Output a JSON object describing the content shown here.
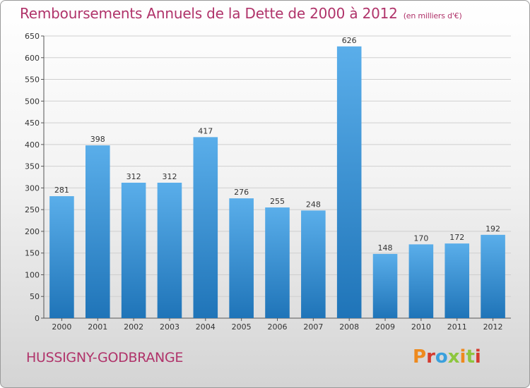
{
  "page": {
    "title": "Remboursements Annuels de la Dette de 2000 à 2012",
    "unit": "(en milliers d'€)",
    "commune": "HUSSIGNY-GODBRANGE",
    "brand": "Proxiti",
    "brand_colors": [
      "#ee8a1e",
      "#d43b2f",
      "#3aa0dd",
      "#8dc63f",
      "#ee8a1e",
      "#8dc63f",
      "#d43b2f"
    ]
  },
  "chart_data": {
    "type": "bar",
    "title": "Remboursements Annuels de la Dette de 2000 à 2012",
    "subtitle": "(en milliers d'€)",
    "xlabel": "",
    "ylabel": "",
    "categories": [
      "2000",
      "2001",
      "2002",
      "2003",
      "2004",
      "2005",
      "2006",
      "2007",
      "2008",
      "2009",
      "2010",
      "2011",
      "2012"
    ],
    "values": [
      281,
      398,
      312,
      312,
      417,
      276,
      255,
      248,
      626,
      148,
      170,
      172,
      192
    ],
    "ylim": [
      0,
      650
    ],
    "yticks": [
      0,
      50,
      100,
      150,
      200,
      250,
      300,
      350,
      400,
      450,
      500,
      550,
      600,
      650
    ],
    "grid": true,
    "bar_color_top": "#5aaeea",
    "bar_color_bottom": "#1f74b8",
    "grid_color": "#cfcfcf",
    "axis_color": "#555555"
  }
}
